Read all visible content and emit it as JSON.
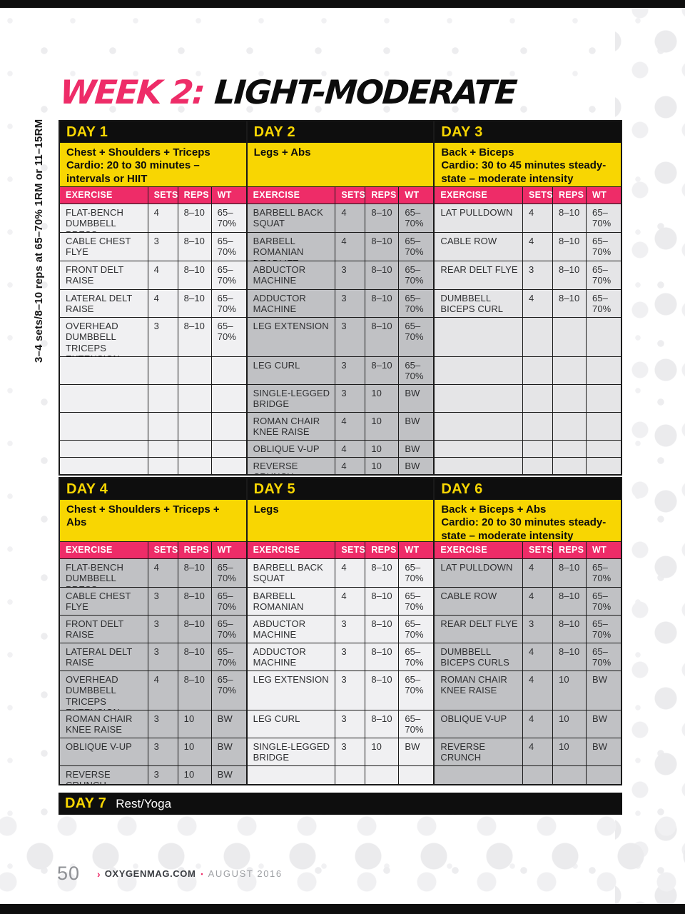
{
  "title": {
    "week": "WEEK 2:",
    "phase": "LIGHT-MODERATE"
  },
  "side_note": "3–4 sets/8–10 reps at 65–70% 1RM or 11–15RM",
  "column_headers": [
    "EXERCISE",
    "SETS",
    "REPS",
    "WT"
  ],
  "blocks": [
    {
      "days": [
        {
          "label": "DAY 1",
          "shade": "light",
          "focus": "Chest + Shoulders + Triceps",
          "cardio": "Cardio: 20 to 30 minutes – intervals or HIIT",
          "rows": [
            {
              "exercise": "FLAT-BENCH DUMBBELL PRESS",
              "sets": "4",
              "reps": "8–10",
              "wt": "65–70%"
            },
            {
              "exercise": "CABLE CHEST FLYE",
              "sets": "3",
              "reps": "8–10",
              "wt": "65–70%"
            },
            {
              "exercise": "FRONT DELT RAISE",
              "sets": "4",
              "reps": "8–10",
              "wt": "65–70%"
            },
            {
              "exercise": "LATERAL DELT RAISE",
              "sets": "4",
              "reps": "8–10",
              "wt": "65–70%"
            },
            {
              "exercise": "OVERHEAD DUMBBELL TRICEPS EXTENSION",
              "sets": "3",
              "reps": "8–10",
              "wt": "65–70%"
            },
            {
              "exercise": "",
              "sets": "",
              "reps": "",
              "wt": ""
            },
            {
              "exercise": "",
              "sets": "",
              "reps": "",
              "wt": ""
            },
            {
              "exercise": "",
              "sets": "",
              "reps": "",
              "wt": ""
            },
            {
              "exercise": "",
              "sets": "",
              "reps": "",
              "wt": ""
            },
            {
              "exercise": "",
              "sets": "",
              "reps": "",
              "wt": ""
            }
          ]
        },
        {
          "label": "DAY 2",
          "shade": "dark",
          "focus": "Legs + Abs",
          "cardio": "",
          "rows": [
            {
              "exercise": "BARBELL BACK SQUAT",
              "sets": "4",
              "reps": "8–10",
              "wt": "65–70%"
            },
            {
              "exercise": "BARBELL ROMANIAN DEADLIFT",
              "sets": "4",
              "reps": "8–10",
              "wt": "65–70%"
            },
            {
              "exercise": "ABDUCTOR MACHINE",
              "sets": "3",
              "reps": "8–10",
              "wt": "65–70%"
            },
            {
              "exercise": "ADDUCTOR MACHINE",
              "sets": "3",
              "reps": "8–10",
              "wt": "65–70%"
            },
            {
              "exercise": "LEG EXTENSION",
              "sets": "3",
              "reps": "8–10",
              "wt": "65–70%"
            },
            {
              "exercise": "LEG CURL",
              "sets": "3",
              "reps": "8–10",
              "wt": "65–70%"
            },
            {
              "exercise": "SINGLE-LEGGED BRIDGE",
              "sets": "3",
              "reps": "10",
              "wt": "BW"
            },
            {
              "exercise": "ROMAN CHAIR KNEE RAISE",
              "sets": "4",
              "reps": "10",
              "wt": "BW"
            },
            {
              "exercise": "OBLIQUE V-UP",
              "sets": "4",
              "reps": "10",
              "wt": "BW"
            },
            {
              "exercise": "REVERSE CRUNCH",
              "sets": "4",
              "reps": "10",
              "wt": "BW"
            }
          ]
        },
        {
          "label": "DAY 3",
          "shade": "mid",
          "focus": "Back + Biceps",
          "cardio": "Cardio: 30 to 45 minutes steady-state – moderate intensity",
          "rows": [
            {
              "exercise": "LAT PULLDOWN",
              "sets": "4",
              "reps": "8–10",
              "wt": "65–70%"
            },
            {
              "exercise": "CABLE ROW",
              "sets": "4",
              "reps": "8–10",
              "wt": "65–70%"
            },
            {
              "exercise": "REAR DELT FLYE",
              "sets": "3",
              "reps": "8–10",
              "wt": "65–70%"
            },
            {
              "exercise": "DUMBBELL BICEPS CURL",
              "sets": "4",
              "reps": "8–10",
              "wt": "65–70%"
            },
            {
              "exercise": "",
              "sets": "",
              "reps": "",
              "wt": ""
            },
            {
              "exercise": "",
              "sets": "",
              "reps": "",
              "wt": ""
            },
            {
              "exercise": "",
              "sets": "",
              "reps": "",
              "wt": ""
            },
            {
              "exercise": "",
              "sets": "",
              "reps": "",
              "wt": ""
            },
            {
              "exercise": "",
              "sets": "",
              "reps": "",
              "wt": ""
            },
            {
              "exercise": "",
              "sets": "",
              "reps": "",
              "wt": ""
            }
          ]
        }
      ]
    },
    {
      "days": [
        {
          "label": "DAY 4",
          "shade": "dark",
          "focus": "Chest + Shoulders + Triceps + Abs",
          "cardio": "",
          "rows": [
            {
              "exercise": "FLAT-BENCH DUMBBELL PRESS",
              "sets": "4",
              "reps": "8–10",
              "wt": "65–70%"
            },
            {
              "exercise": "CABLE CHEST FLYE",
              "sets": "3",
              "reps": "8–10",
              "wt": "65–70%"
            },
            {
              "exercise": "FRONT DELT RAISE",
              "sets": "3",
              "reps": "8–10",
              "wt": "65–70%"
            },
            {
              "exercise": "LATERAL DELT RAISE",
              "sets": "3",
              "reps": "8–10",
              "wt": "65–70%"
            },
            {
              "exercise": "OVERHEAD DUMBBELL TRICEPS EXTENSION",
              "sets": "4",
              "reps": "8–10",
              "wt": "65–70%"
            },
            {
              "exercise": "ROMAN CHAIR KNEE RAISE",
              "sets": "3",
              "reps": "10",
              "wt": "BW"
            },
            {
              "exercise": "OBLIQUE V-UP",
              "sets": "3",
              "reps": "10",
              "wt": "BW"
            },
            {
              "exercise": "REVERSE CRUNCH",
              "sets": "3",
              "reps": "10",
              "wt": "BW"
            }
          ]
        },
        {
          "label": "DAY 5",
          "shade": "light",
          "focus": "Legs",
          "cardio": "",
          "rows": [
            {
              "exercise": "BARBELL BACK SQUAT",
              "sets": "4",
              "reps": "8–10",
              "wt": "65–70%"
            },
            {
              "exercise": "BARBELL ROMANIAN DEADLIFT",
              "sets": "4",
              "reps": "8–10",
              "wt": "65–70%"
            },
            {
              "exercise": "ABDUCTOR MACHINE",
              "sets": "3",
              "reps": "8–10",
              "wt": "65–70%"
            },
            {
              "exercise": "ADDUCTOR MACHINE",
              "sets": "3",
              "reps": "8–10",
              "wt": "65–70%"
            },
            {
              "exercise": "LEG EXTENSION",
              "sets": "3",
              "reps": "8–10",
              "wt": "65–70%"
            },
            {
              "exercise": "LEG CURL",
              "sets": "3",
              "reps": "8–10",
              "wt": "65–70%"
            },
            {
              "exercise": "SINGLE-LEGGED BRIDGE",
              "sets": "3",
              "reps": "10",
              "wt": "BW"
            },
            {
              "exercise": "",
              "sets": "",
              "reps": "",
              "wt": ""
            }
          ]
        },
        {
          "label": "DAY 6",
          "shade": "dark",
          "focus": "Back + Biceps + Abs",
          "cardio": "Cardio: 20 to 30 minutes steady-state – moderate intensity",
          "rows": [
            {
              "exercise": "LAT PULLDOWN",
              "sets": "4",
              "reps": "8–10",
              "wt": "65–70%"
            },
            {
              "exercise": "CABLE ROW",
              "sets": "4",
              "reps": "8–10",
              "wt": "65–70%"
            },
            {
              "exercise": "REAR DELT FLYE",
              "sets": "3",
              "reps": "8–10",
              "wt": "65–70%"
            },
            {
              "exercise": "DUMBBELL BICEPS CURLS",
              "sets": "4",
              "reps": "8–10",
              "wt": "65–70%"
            },
            {
              "exercise": "ROMAN CHAIR KNEE RAISE",
              "sets": "4",
              "reps": "10",
              "wt": "BW"
            },
            {
              "exercise": "OBLIQUE V-UP",
              "sets": "4",
              "reps": "10",
              "wt": "BW"
            },
            {
              "exercise": "REVERSE CRUNCH",
              "sets": "4",
              "reps": "10",
              "wt": "BW"
            },
            {
              "exercise": "",
              "sets": "",
              "reps": "",
              "wt": ""
            }
          ]
        }
      ]
    }
  ],
  "day7": {
    "label": "DAY 7",
    "text": "Rest/Yoga"
  },
  "footer": {
    "page_number": "50",
    "chevron": "›",
    "site": "OXYGENMAG.COM",
    "separator": "▪",
    "issue": "AUGUST 2016"
  },
  "colors": {
    "pink": "#ee2c68",
    "yellow": "#f8d602",
    "ink": "#0e0e0e",
    "border": "#1a1a1a",
    "cell-light": "#f0f0f2",
    "cell-mid": "#e5e5e7",
    "cell-dark": "#c0c1c4",
    "cell-text": "#2e2f31"
  }
}
